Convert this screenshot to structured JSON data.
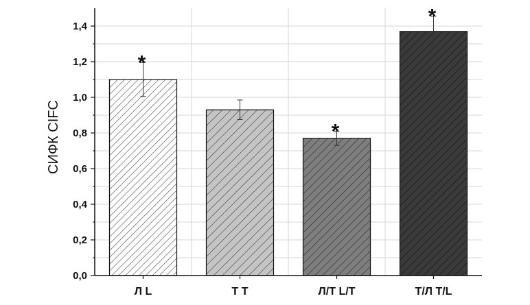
{
  "chart_data": {
    "type": "bar",
    "title": "",
    "xlabel": "",
    "ylabel": "СИФК CIFC",
    "categories": [
      "Л L",
      "Т Т",
      "Л/Т  L/T",
      "Т/Л T/L"
    ],
    "values": [
      1.1,
      0.93,
      0.77,
      1.37
    ],
    "errors": [
      0.095,
      0.055,
      0.04,
      0.085
    ],
    "significant": [
      true,
      false,
      true,
      true
    ],
    "significance_marker": "*",
    "ylim": [
      0,
      1.5
    ],
    "y_ticks": [
      0.0,
      0.2,
      0.4,
      0.6,
      0.8,
      1.0,
      1.2,
      1.4
    ],
    "y_tick_labels": [
      "0,0",
      "0,2",
      "0,4",
      "0,6",
      "0,8",
      "1,0",
      "1,2",
      "1,4"
    ],
    "grid": true,
    "bar_fills": [
      "#ffffff",
      "#c4c4c4",
      "#7e7e7e",
      "#3a3a3a"
    ],
    "hatch_colors": [
      "#555555",
      "#4a4a4a",
      "#2f2f2f",
      "#141414"
    ]
  }
}
